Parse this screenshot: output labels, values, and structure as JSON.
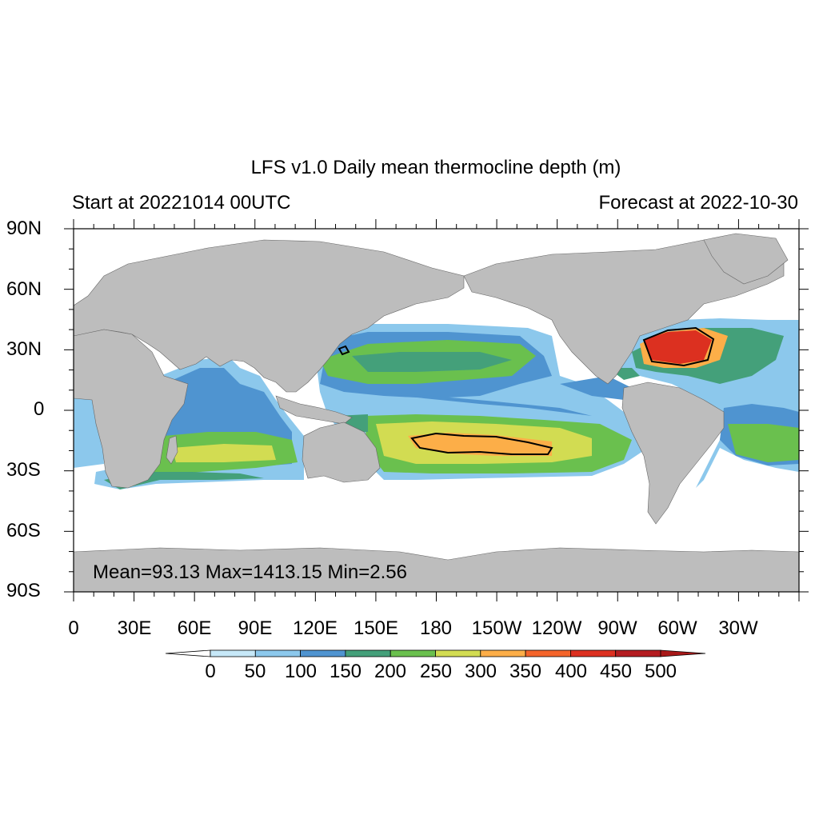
{
  "title": "LFS v1.0 Daily mean thermocline depth (m)",
  "left_subtitle": "Start at 20221014 00UTC",
  "right_subtitle": "Forecast at 2022-10-30",
  "stats": "Mean=93.13  Max=1413.15  Min=2.56",
  "y_ticks": [
    "90N",
    "60N",
    "30N",
    "0",
    "30S",
    "60S",
    "90S"
  ],
  "x_ticks": [
    "0",
    "30E",
    "60E",
    "90E",
    "120E",
    "150E",
    "180",
    "150W",
    "120W",
    "90W",
    "60W",
    "30W"
  ],
  "colorbar": {
    "labels": [
      "0",
      "50",
      "100",
      "150",
      "200",
      "250",
      "300",
      "350",
      "400",
      "450",
      "500"
    ],
    "colors": [
      "#ffffff",
      "#c6e8f8",
      "#8cc8ec",
      "#4f94d0",
      "#44a07a",
      "#6ac04e",
      "#d2dc52",
      "#fcae48",
      "#f4642a",
      "#dc3020",
      "#b41c20",
      "#a81818"
    ]
  },
  "land_color": "#bdbdbd",
  "ocean_color": "#ffffff",
  "contour_color": "#000000"
}
